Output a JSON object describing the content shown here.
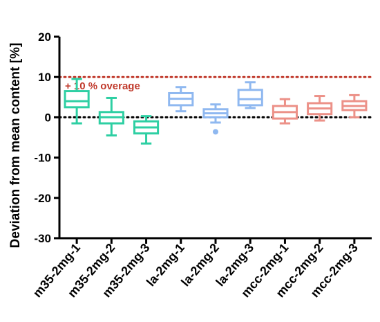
{
  "chart_data": {
    "type": "box",
    "title": "",
    "xlabel": "",
    "ylabel": "Deviation from mean content [%]",
    "ylim": [
      -30,
      20
    ],
    "yticks": [
      20,
      10,
      0,
      -10,
      -20,
      -30
    ],
    "grid": false,
    "reference_lines": [
      {
        "value": 10,
        "label": "+ 10 % overage",
        "color": "#c0392b",
        "style": "dotted"
      },
      {
        "value": 0,
        "label": "",
        "color": "#000000",
        "style": "dotted"
      }
    ],
    "categories": [
      "m35-2mg-1",
      "m35-2mg-2",
      "m35-2mg-3",
      "la-2mg-1",
      "la-2mg-2",
      "la-2mg-3",
      "mcc-2mg-1",
      "mcc-2mg-2",
      "mcc-2mg-3"
    ],
    "colors": [
      "#2ecfa3",
      "#2ecfa3",
      "#2ecfa3",
      "#8fb8f0",
      "#8fb8f0",
      "#8fb8f0",
      "#ec9188",
      "#ec9188",
      "#ec9188"
    ],
    "boxes": [
      {
        "category": "m35-2mg-1",
        "min": -1.5,
        "q1": 2.5,
        "median": 4.0,
        "q3": 6.5,
        "max": 9.5,
        "outliers": []
      },
      {
        "category": "m35-2mg-2",
        "min": -4.5,
        "q1": -1.5,
        "median": 0.0,
        "q3": 1.3,
        "max": 4.8,
        "outliers": []
      },
      {
        "category": "m35-2mg-3",
        "min": -6.5,
        "q1": -4.0,
        "median": -2.5,
        "q3": -1.0,
        "max": 0.3,
        "outliers": []
      },
      {
        "category": "la-2mg-1",
        "min": 1.5,
        "q1": 3.0,
        "median": 4.6,
        "q3": 6.0,
        "max": 7.5,
        "outliers": []
      },
      {
        "category": "la-2mg-2",
        "min": -1.3,
        "q1": 0.0,
        "median": 1.0,
        "q3": 2.0,
        "max": 3.2,
        "outliers": [
          -3.6
        ]
      },
      {
        "category": "la-2mg-3",
        "min": 2.3,
        "q1": 3.0,
        "median": 4.5,
        "q3": 6.8,
        "max": 8.7,
        "outliers": []
      },
      {
        "category": "mcc-2mg-1",
        "min": -1.5,
        "q1": -0.3,
        "median": 1.3,
        "q3": 2.8,
        "max": 4.5,
        "outliers": []
      },
      {
        "category": "mcc-2mg-2",
        "min": -0.8,
        "q1": 0.8,
        "median": 2.2,
        "q3": 3.5,
        "max": 5.3,
        "outliers": []
      },
      {
        "category": "mcc-2mg-3",
        "min": 0.0,
        "q1": 1.8,
        "median": 2.8,
        "q3": 4.0,
        "max": 5.5,
        "outliers": []
      }
    ]
  }
}
